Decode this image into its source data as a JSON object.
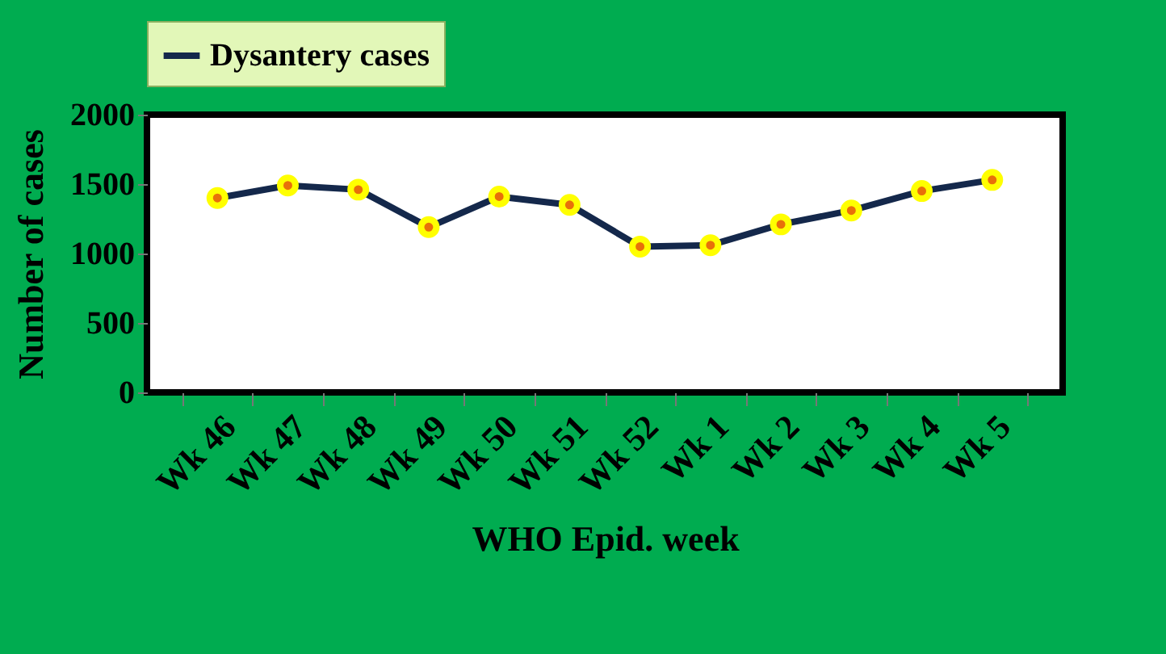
{
  "chart_data": {
    "type": "line",
    "xlabel": "WHO Epid. week",
    "ylabel": "Number of cases",
    "categories": [
      "Wk 46",
      "Wk 47",
      "Wk 48",
      "Wk 49",
      "Wk 50",
      "Wk 51",
      "Wk 52",
      "Wk 1",
      "Wk 2",
      "Wk 3",
      "Wk 4",
      "Wk 5"
    ],
    "series": [
      {
        "name": "Dysantery cases",
        "color": "#14284b",
        "values": [
          1400,
          1490,
          1460,
          1190,
          1410,
          1350,
          1050,
          1060,
          1210,
          1310,
          1450,
          1530
        ]
      }
    ],
    "ylim": [
      0,
      2000
    ],
    "yticks": [
      0,
      500,
      1000,
      1500,
      2000
    ],
    "grid": false,
    "legend": "top",
    "marker": "circle",
    "line_style": "solid"
  }
}
